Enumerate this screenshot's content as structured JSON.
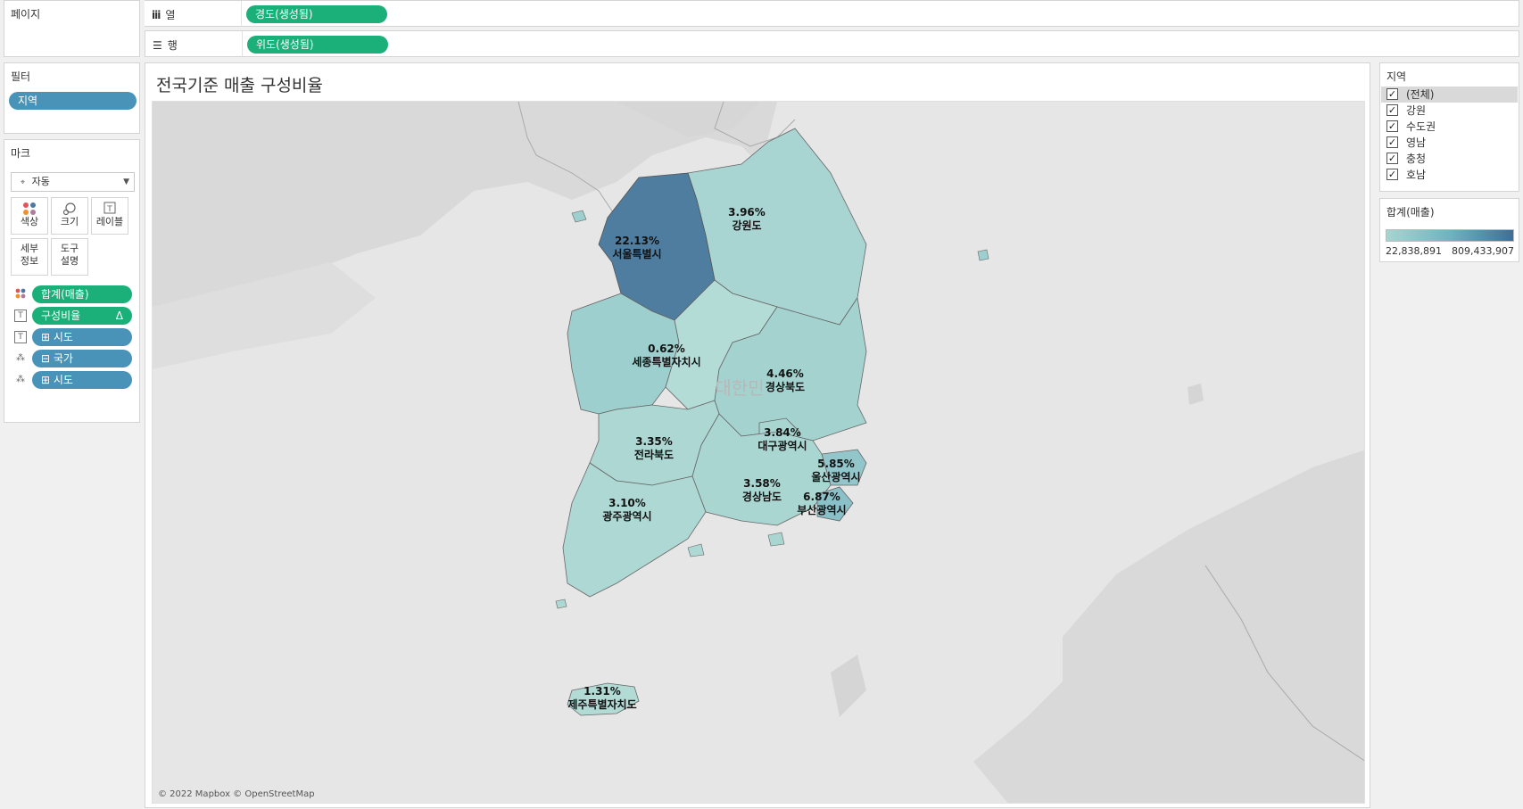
{
  "left": {
    "pages_title": "페이지",
    "filters_title": "필터",
    "filter_pill": "지역",
    "marks_title": "마크",
    "mark_type": "자동",
    "mark_buttons": [
      {
        "label": "색상"
      },
      {
        "label": "크기"
      },
      {
        "label": "레이블"
      },
      {
        "label": "세부\n정보"
      },
      {
        "label": "도구\n설명"
      }
    ],
    "mark_fields": [
      {
        "label": "합계(매출)",
        "kind": "color"
      },
      {
        "label": "구성비율",
        "kind": "label",
        "delta": "Δ"
      },
      {
        "label": "⊞ 시도",
        "kind": "label"
      },
      {
        "label": "⊟ 국가",
        "kind": "detail"
      },
      {
        "label": "⊞ 시도",
        "kind": "detail"
      }
    ]
  },
  "shelves": {
    "columns_label": "열",
    "columns_pill": "경도(생성됨)",
    "rows_label": "행",
    "rows_pill": "위도(생성됨)"
  },
  "view": {
    "title": "전국기준 매출 구성비율",
    "background_label": "대한민",
    "attribution": "© 2022 Mapbox © OpenStreetMap",
    "regions": [
      {
        "name": "서울특별시",
        "pct": "22.13%",
        "color": "#4f7d9f"
      },
      {
        "name": "강원도",
        "pct": "3.96%",
        "color": "#a8d5d1"
      },
      {
        "name": "세종특별자치시",
        "pct": "0.62%",
        "color": "#b4dcd7"
      },
      {
        "name": "경상북도",
        "pct": "4.46%",
        "color": "#a4d2cf"
      },
      {
        "name": "대구광역시",
        "pct": "3.84%",
        "color": "#a9d5d1"
      },
      {
        "name": "전라북도",
        "pct": "3.35%",
        "color": "#acd7d3"
      },
      {
        "name": "울산광역시",
        "pct": "5.85%",
        "color": "#92c6cb"
      },
      {
        "name": "경상남도",
        "pct": "3.58%",
        "color": "#aad6d2"
      },
      {
        "name": "광주광역시",
        "pct": "3.10%",
        "color": "#aed8d3"
      },
      {
        "name": "부산광역시",
        "pct": "6.87%",
        "color": "#8ac0c8"
      },
      {
        "name": "제주특별자치도",
        "pct": "1.31%",
        "color": "#b3dbd6"
      }
    ],
    "other_region_color": "#9ccfcd"
  },
  "right": {
    "filter_title": "지역",
    "filter_items": [
      {
        "label": "(전체)",
        "checked": "✓"
      },
      {
        "label": "강원",
        "checked": "✓"
      },
      {
        "label": "수도권",
        "checked": "✓"
      },
      {
        "label": "영남",
        "checked": "✓"
      },
      {
        "label": "충청",
        "checked": "✓"
      },
      {
        "label": "호남",
        "checked": "✓"
      }
    ],
    "legend_title": "합계(매출)",
    "legend_min": "22,838,891",
    "legend_max": "809,433,907"
  }
}
